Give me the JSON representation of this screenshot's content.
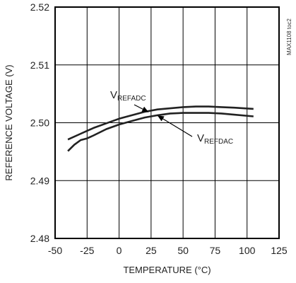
{
  "chart_data": {
    "type": "line",
    "title": "",
    "xlabel": "TEMPERATURE (°C)",
    "ylabel": "REFERENCE VOLTAGE (V)",
    "xlim": [
      -50,
      125
    ],
    "ylim": [
      2.48,
      2.52
    ],
    "x_ticks": [
      "-50",
      "-25",
      "0",
      "25",
      "50",
      "75",
      "100",
      "125"
    ],
    "y_ticks": [
      "2.48",
      "2.49",
      "2.50",
      "2.51",
      "2.52"
    ],
    "grid": true,
    "watermark": "MAX1108 toc2",
    "series": [
      {
        "name": "VREFADC",
        "label_main": "V",
        "label_sub": "REFADC",
        "x": [
          -40,
          -30,
          -20,
          -10,
          0,
          10,
          20,
          30,
          40,
          50,
          60,
          70,
          80,
          90,
          105
        ],
        "y": [
          2.4971,
          2.4981,
          2.4991,
          2.4999,
          2.5007,
          2.5013,
          2.5019,
          2.5023,
          2.5025,
          2.5027,
          2.5028,
          2.5028,
          2.5027,
          2.5026,
          2.5024
        ]
      },
      {
        "name": "VREFDAC",
        "label_main": "V",
        "label_sub": "REFDAC",
        "x": [
          -40,
          -35,
          -30,
          -25,
          -20,
          -10,
          0,
          10,
          20,
          30,
          40,
          50,
          60,
          70,
          80,
          90,
          105
        ],
        "y": [
          2.4951,
          2.4962,
          2.497,
          2.4973,
          2.4978,
          2.4989,
          2.4997,
          2.5003,
          2.5009,
          2.5013,
          2.5016,
          2.5017,
          2.5017,
          2.5017,
          2.5016,
          2.5014,
          2.5011
        ]
      }
    ]
  }
}
